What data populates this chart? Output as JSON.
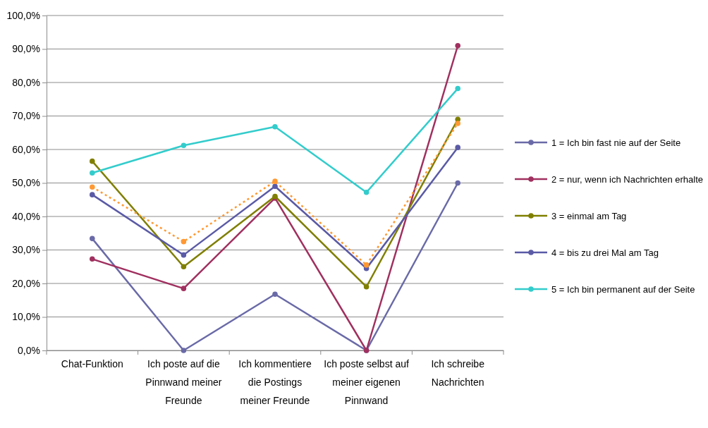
{
  "chart_data": {
    "type": "line",
    "categories": [
      "Chat-Funktion",
      "Ich poste auf die Pinnwand meiner Freunde",
      "Ich kommentiere die Postings meiner Freunde",
      "Ich poste selbst auf meiner eigenen Pinnwand",
      "Ich schreibe Nachrichten"
    ],
    "ylim": [
      0,
      100
    ],
    "yticks": [
      {
        "value": 0,
        "label": "0,0%"
      },
      {
        "value": 10,
        "label": "10,0%"
      },
      {
        "value": 20,
        "label": "20,0%"
      },
      {
        "value": 30,
        "label": "30,0%"
      },
      {
        "value": 40,
        "label": "40,0%"
      },
      {
        "value": 50,
        "label": "50,0%"
      },
      {
        "value": 60,
        "label": "60,0%"
      },
      {
        "value": 70,
        "label": "70,0%"
      },
      {
        "value": 80,
        "label": "80,0%"
      },
      {
        "value": 90,
        "label": "90,0%"
      },
      {
        "value": 100,
        "label": "100,0%"
      }
    ],
    "grid": "y",
    "legend": "right",
    "marker": "circle",
    "line_style": "solid",
    "series": [
      {
        "name": "1 = Ich bin fast nie auf der Seite",
        "color": "#6a6aa8",
        "values": [
          33.4,
          0,
          16.8,
          0,
          50
        ]
      },
      {
        "name": "2 = nur, wenn ich Nachrichten erhalte",
        "color": "#a0305f",
        "values": [
          27.3,
          18.5,
          45.5,
          0,
          91
        ]
      },
      {
        "name": "3 = einmal am Tag",
        "color": "#7f7f00",
        "values": [
          56.5,
          25,
          46,
          19,
          69
        ]
      },
      {
        "name": "4 = bis zu drei Mal am Tag",
        "color": "#5a5aa6",
        "values": [
          46.5,
          28.5,
          49,
          24.5,
          60.6
        ]
      },
      {
        "name": "5 = Ich bin permanent auf der Seite",
        "color": "#33cccc",
        "values": [
          53,
          61.2,
          66.8,
          47.2,
          78.2
        ]
      },
      {
        "color": "#ff9933",
        "line_style": "dotted",
        "values": [
          48.8,
          32.5,
          50.5,
          25.5,
          67.8
        ]
      }
    ]
  }
}
